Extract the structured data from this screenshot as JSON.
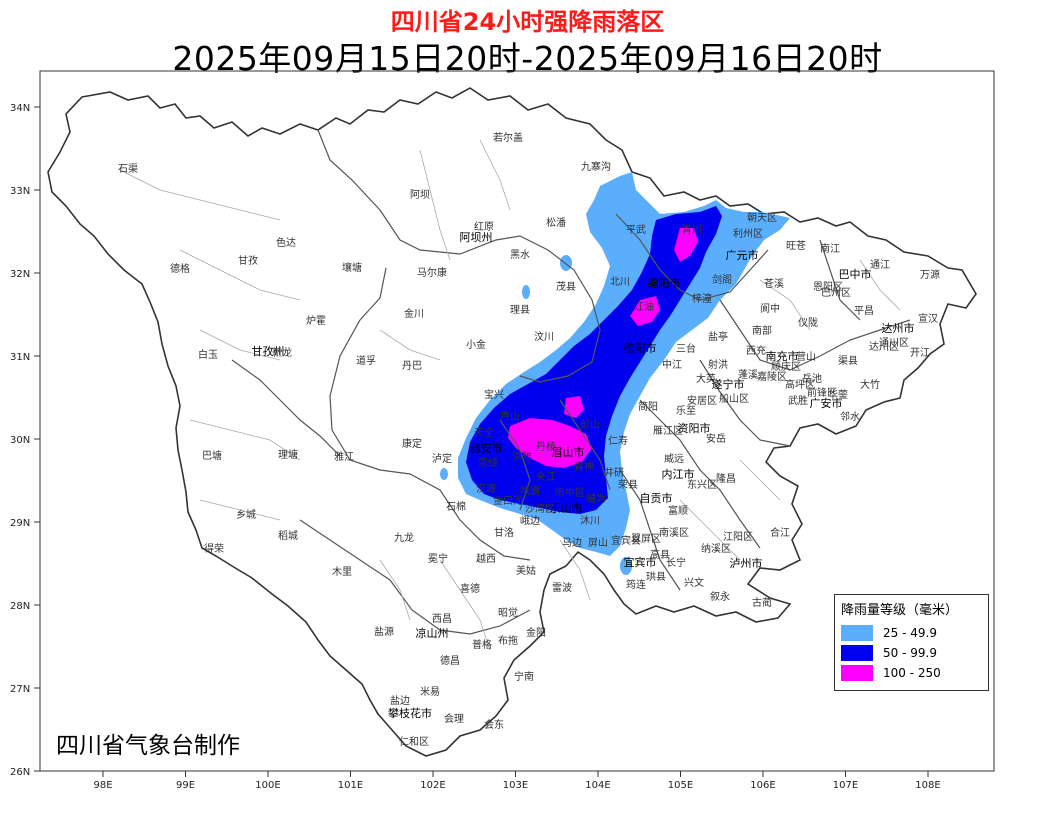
{
  "title": "四川省24小时强降雨落区",
  "subtitle": "2025年09月15日20时-2025年09月16日20时",
  "credit": "四川省气象台制作",
  "axes": {
    "lat_labels": [
      "34N",
      "33N",
      "32N",
      "31N",
      "30N",
      "29N",
      "28N",
      "27N",
      "26N"
    ],
    "lon_labels": [
      "98E",
      "99E",
      "100E",
      "101E",
      "102E",
      "103E",
      "104E",
      "105E",
      "106E",
      "107E",
      "108E"
    ]
  },
  "legend": {
    "title": "降雨量等级（毫米）",
    "items": [
      {
        "label": "25 - 49.9",
        "color": "#5aaefc"
      },
      {
        "label": "50 - 99.9",
        "color": "#0000ee"
      },
      {
        "label": "100 - 250",
        "color": "#ff00ff"
      }
    ]
  },
  "colors": {
    "province_border": "#333333",
    "city_border": "#555555",
    "county_border": "#999999",
    "rain_25": "#5aaefc",
    "rain_50": "#0000ee",
    "rain_100": "#ff00ff"
  },
  "cities": [
    "阿坝州",
    "甘孜州",
    "凉山州",
    "攀枝花市",
    "雅安市",
    "眉山市",
    "乐山市",
    "绵阳市",
    "德阳市",
    "广元市",
    "南充市",
    "巴中市",
    "达州市",
    "遂宁市",
    "资阳市",
    "内江市",
    "自贡市",
    "宜宾市",
    "泸州市",
    "广安市"
  ],
  "places": [
    "石渠",
    "若尔盖",
    "九寨沟",
    "阿坝",
    "红原",
    "松潘",
    "平武",
    "青川",
    "朝天区",
    "利州区",
    "旺苍",
    "南江",
    "通江",
    "万源",
    "德格",
    "甘孜",
    "色达",
    "壤塘",
    "马尔康",
    "黑水",
    "茂县",
    "北川",
    "江油",
    "苍溪",
    "白玉",
    "新龙",
    "炉霍",
    "道孚",
    "丹巴",
    "金川",
    "小金",
    "理县",
    "汶川",
    "梓潼",
    "阆中",
    "仪陇",
    "平昌",
    "宣汉",
    "巴塘",
    "理塘",
    "雅江",
    "康定",
    "泸定",
    "宝兴",
    "芦山",
    "天全",
    "荥经",
    "汉源",
    "石棉",
    "乡城",
    "稻城",
    "九龙",
    "冕宁",
    "越西",
    "甘洛",
    "峨边",
    "马边",
    "雷波",
    "美姑",
    "昭觉",
    "喜德",
    "西昌",
    "木里",
    "盐源",
    "德昌",
    "普格",
    "布拖",
    "金阳",
    "宁南",
    "会东",
    "会理",
    "米易",
    "盐边",
    "仁和区",
    "得荣",
    "简阳",
    "安岳",
    "乐至",
    "射洪",
    "蓬溪",
    "大英",
    "西充",
    "南部",
    "营山",
    "渠县",
    "大竹",
    "邻水",
    "岳池",
    "武胜",
    "荣县",
    "威远",
    "隆昌",
    "富顺",
    "沐川",
    "屏山",
    "筠连",
    "珙县",
    "兴文",
    "叙永",
    "古蔺",
    "合江",
    "纳溪区",
    "江阳区",
    "长宁",
    "高县",
    "犍为",
    "井研",
    "夹江",
    "峨眉",
    "洪雅",
    "丹棱",
    "青神",
    "仁寿",
    "彭山",
    "中江",
    "三台",
    "盐亭",
    "剑阁",
    "南溪区",
    "宜宾县",
    "翠屏区",
    "安居区",
    "船山区",
    "雁江区",
    "东兴区",
    "市中区",
    "沙湾区",
    "金口河",
    "嘉陵区",
    "顺庆区",
    "高坪区",
    "恩阳区",
    "巴州区",
    "通川区",
    "达川区",
    "开江",
    "前锋区",
    "华蓥"
  ]
}
